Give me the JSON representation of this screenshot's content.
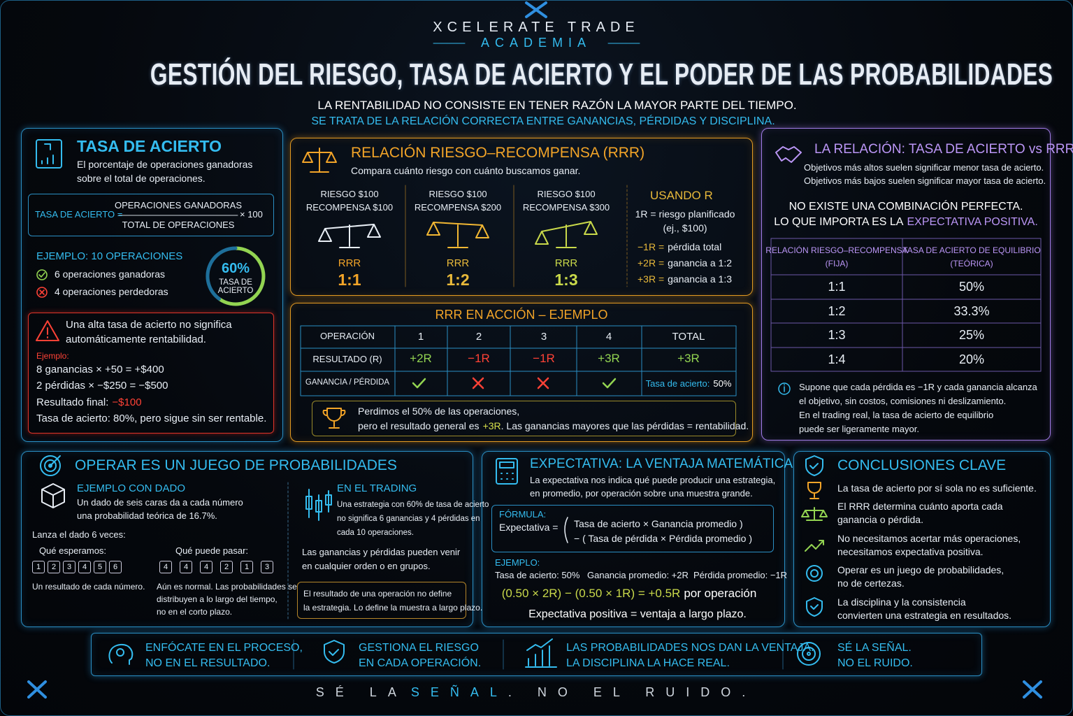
{
  "header": {
    "brand": "XCELERATE TRADE",
    "sub": "ACADEMIA",
    "title": "GESTIÓN DEL RIESGO, TASA DE ACIERTO Y EL PODER DE LAS PROBABILIDADES",
    "line1": "LA RENTABILIDAD NO CONSISTE EN TENER RAZÓN LA MAYOR PARTE DEL TIEMPO.",
    "line2": "SE TRATA DE LA RELACIÓN CORRECTA ENTRE GANANCIAS, PÉRDIDAS Y DISCIPLINA."
  },
  "tasa": {
    "title": "TASA DE ACIERTO",
    "desc": [
      "El porcentaje de operaciones ganadoras",
      "sobre el total de operaciones."
    ],
    "formula_label": "TASA DE ACIERTO =",
    "numerator": "OPERACIONES GANADORAS",
    "denominator": "TOTAL DE OPERACIONES",
    "times": "× 100",
    "example_title": "EJEMPLO: 10 OPERACIONES",
    "wins": "6 operaciones ganadoras",
    "losses": "4 operaciones perdedoras",
    "gauge_value": "60%",
    "gauge_label": [
      "TASA DE",
      "ACIERTO"
    ]
  },
  "warning": {
    "text": [
      "Una alta tasa de acierto no significa",
      "automáticamente rentabilidad."
    ],
    "example_label": "Ejemplo:",
    "lines": [
      "8 ganancias × +50 = +$400",
      "2 pérdidas × −$250 = −$500"
    ],
    "final_label": "Resultado final:",
    "final_value": "−$100",
    "last": "Tasa de acierto: 80%, pero sigue sin ser rentable."
  },
  "rrr": {
    "title": "RELACIÓN RIESGO–RECOMPENSA (RRR)",
    "desc": "Compara cuánto riesgo con cuánto buscamos ganar.",
    "scales": [
      {
        "risk": "RIESGO $100",
        "reward": "RECOMPENSA $100",
        "label": "RRR",
        "ratio": "1:1"
      },
      {
        "risk": "RIESGO $100",
        "reward": "RECOMPENSA $200",
        "label": "RRR",
        "ratio": "1:2"
      },
      {
        "risk": "RIESGO $100",
        "reward": "RECOMPENSA $300",
        "label": "RRR",
        "ratio": "1:3"
      }
    ],
    "usando": {
      "title": "USANDO R",
      "def": [
        "1R = riesgo planificado",
        "(ej., $100)"
      ],
      "items": [
        {
          "key": "−1R =",
          "text": "pérdida total"
        },
        {
          "key": "+2R =",
          "text": "ganancia a 1:2"
        },
        {
          "key": "+3R =",
          "text": "ganancia a 1:3"
        }
      ]
    }
  },
  "accion": {
    "title": "RRR EN ACCIÓN – EJEMPLO",
    "header": [
      "OPERACIÓN",
      "1",
      "2",
      "3",
      "4",
      "TOTAL"
    ],
    "result_label": "RESULTADO (R)",
    "results": [
      "+2R",
      "−1R",
      "−1R",
      "+3R",
      "+3R"
    ],
    "gp_label": "GANANCIA / PÉRDIDA",
    "total_label": "Tasa de acierto:",
    "total_value": "50%",
    "note1": "Perdimos el 50% de las operaciones,",
    "note2a": "pero el resultado general es",
    "note2b": "+3R",
    "note2c": ". Las ganancias mayores que las pérdidas = rentabilidad."
  },
  "relacion": {
    "title": "LA RELACIÓN: TASA DE ACIERTO vs RRR",
    "desc": [
      "Objetivos más altos suelen significar menor tasa de acierto.",
      "Objetivos más bajos suelen significar mayor tasa de acierto."
    ],
    "statement1": "NO EXISTE UNA COMBINACIÓN PERFECTA.",
    "statement2": "LO QUE IMPORTA ES LA",
    "statement2_hl": "EXPECTATIVA POSITIVA.",
    "headers": [
      [
        "RELACIÓN RIESGO–RECOMPENSA",
        "(FIJA)"
      ],
      [
        "TASA DE ACIERTO DE EQUILIBRIO",
        "(TEÓRICA)"
      ]
    ],
    "rows": [
      [
        "1:1",
        "50%"
      ],
      [
        "1:2",
        "33.3%"
      ],
      [
        "1:3",
        "25%"
      ],
      [
        "1:4",
        "20%"
      ]
    ],
    "note": [
      "Supone que cada pérdida es −1R y cada ganancia alcanza",
      "el objetivo, sin costos, comisiones ni deslizamiento.",
      "En el trading real, la tasa de acierto de equilibrio",
      "puede ser ligeramente mayor."
    ]
  },
  "prob": {
    "title": "OPERAR ES UN JUEGO DE PROBABILIDADES",
    "dado_title": "EJEMPLO CON DADO",
    "dado_desc": [
      "Un dado de seis caras da a cada número",
      "una probabilidad teórica de 16.7%."
    ],
    "lanza": "Lanza el dado 6 veces:",
    "esperamos": "Qué esperamos:",
    "esperados": [
      1,
      2,
      3,
      4,
      5,
      6
    ],
    "puede": "Qué puede pasar:",
    "posibles": [
      4,
      4,
      4,
      2,
      1,
      3
    ],
    "cada": "Un resultado de cada número.",
    "normal": [
      "Aún es normal. Las probabilidades se",
      "distribuyen a lo largo del tiempo,",
      "no en el corto plazo."
    ],
    "trading_title": "EN EL TRADING",
    "trading_desc": [
      "Una estrategia con 60% de tasa de acierto",
      "no significa 6 ganancias y 4 pérdidas en",
      "cada 10 operaciones."
    ],
    "trading_2": [
      "Las ganancias y pérdidas pueden venir",
      "en cualquier orden o en grupos."
    ],
    "trading_note": [
      "El resultado de una operación no define",
      "la estrategia. Lo define la muestra a largo plazo."
    ]
  },
  "expectativa": {
    "title": "EXPECTATIVA: LA VENTAJA MATEMÁTICA",
    "desc": [
      "La expectativa nos indica qué puede producir una estrategia,",
      "en promedio, por operación sobre una muestra grande."
    ],
    "formula_label": "FÓRMULA:",
    "lhs": "Expectativa =",
    "term1": "Tasa de acierto × Ganancia promedio )",
    "term2": "− (  Tasa de pérdida × Pérdida promedio  )",
    "example_label": "EJEMPLO:",
    "ex": [
      "Tasa de acierto: 50%",
      "Ganancia promedio: +2R",
      "Pérdida promedio: −1R"
    ],
    "calc": "(0.50 × 2R) − (0.50 × 1R) = +0.5R",
    "calc_suffix": "por operación",
    "final": "Expectativa positiva = ventaja a largo plazo."
  },
  "conclusiones": {
    "title": "CONCLUSIONES CLAVE",
    "items": [
      [
        "La tasa de acierto por sí sola no es suficiente."
      ],
      [
        "El RRR determina cuánto aporta cada",
        "ganancia o pérdida."
      ],
      [
        "No necesitamos acertar más operaciones,",
        "necesitamos expectativa positiva."
      ],
      [
        "Operar es un juego de probabilidades,",
        "no de certezas."
      ],
      [
        "La disciplina y la consistencia",
        "convierten una estrategia en resultados."
      ]
    ]
  },
  "banner": [
    [
      "ENFÓCATE EN EL PROCESO,",
      "NO EN EL RESULTADO."
    ],
    [
      "GESTIONA EL RIESGO",
      "EN CADA OPERACIÓN."
    ],
    [
      "LAS PROBABILIDADES NOS DAN LA VENTAJA.",
      "LA DISCIPLINA LA HACE REAL."
    ],
    [
      "SÉ LA SEÑAL.",
      "NO EL RUIDO."
    ]
  ],
  "footer": {
    "a": "SÉ LA",
    "hl": "SEÑAL",
    "b": ". NO EL RUIDO."
  }
}
